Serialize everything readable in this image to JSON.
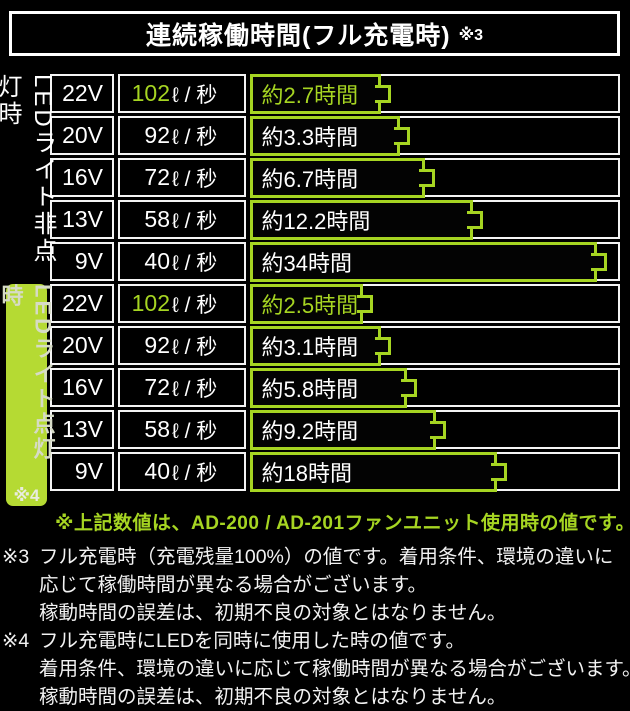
{
  "title": {
    "text": "連続稼働時間(フル充電時)",
    "note_ref": "※3"
  },
  "colors": {
    "accent_green": "#a6d522",
    "banner_green": "#b5da33",
    "banner_text": "#d6dbc6",
    "cell_border": "#f4f4f4",
    "bg": "#000000"
  },
  "chart_data": {
    "type": "bar",
    "title": "連続稼働時間(フル充電時) ※3",
    "orientation": "horizontal",
    "flow_unit": "ℓ / 秒",
    "time_unit": "時間",
    "sections": [
      {
        "label": "LEDライト非点灯時",
        "note_ref": "",
        "rows": [
          {
            "voltage": "22V",
            "flow": "102",
            "flow_lps": 102,
            "time": "約2.7時間",
            "hours": 2.7,
            "bar_frac": 0.36,
            "highlight": true
          },
          {
            "voltage": "20V",
            "flow": "92",
            "flow_lps": 92,
            "time": "約3.3時間",
            "hours": 3.3,
            "bar_frac": 0.41,
            "highlight": false
          },
          {
            "voltage": "16V",
            "flow": "72",
            "flow_lps": 72,
            "time": "約6.7時間",
            "hours": 6.7,
            "bar_frac": 0.48,
            "highlight": false
          },
          {
            "voltage": "13V",
            "flow": "58",
            "flow_lps": 58,
            "time": "約12.2時間",
            "hours": 12.2,
            "bar_frac": 0.61,
            "highlight": false
          },
          {
            "voltage": "9V",
            "flow": "40",
            "flow_lps": 40,
            "time": "約34時間",
            "hours": 34,
            "bar_frac": 0.95,
            "highlight": false
          }
        ]
      },
      {
        "label": "LEDライト点灯時",
        "note_ref": "※4",
        "rows": [
          {
            "voltage": "22V",
            "flow": "102",
            "flow_lps": 102,
            "time": "約2.5時間",
            "hours": 2.5,
            "bar_frac": 0.31,
            "highlight": true
          },
          {
            "voltage": "20V",
            "flow": "92",
            "flow_lps": 92,
            "time": "約3.1時間",
            "hours": 3.1,
            "bar_frac": 0.36,
            "highlight": false
          },
          {
            "voltage": "16V",
            "flow": "72",
            "flow_lps": 72,
            "time": "約5.8時間",
            "hours": 5.8,
            "bar_frac": 0.43,
            "highlight": false
          },
          {
            "voltage": "13V",
            "flow": "58",
            "flow_lps": 58,
            "time": "約9.2時間",
            "hours": 9.2,
            "bar_frac": 0.51,
            "highlight": false
          },
          {
            "voltage": "9V",
            "flow": "40",
            "flow_lps": 40,
            "time": "約18時間",
            "hours": 18,
            "bar_frac": 0.675,
            "highlight": false
          }
        ]
      }
    ]
  },
  "footnotes": {
    "general": "※上記数値は、AD-200 / AD-201ファンユニット使用時の値です。",
    "note3": {
      "marker": "※3",
      "lines": [
        "フル充電時（充電残量100%）の値です。着用条件、環境の違いに",
        "応じて稼働時間が異なる場合がございます。",
        "稼動時間の誤差は、初期不良の対象とはなりません。"
      ]
    },
    "note4": {
      "marker": "※4",
      "lines": [
        "フル充電時にLEDを同時に使用した時の値です。",
        "着用条件、環境の違いに応じて稼働時間が異なる場合がございます。",
        "稼動時間の誤差は、初期不良の対象とはなりません。"
      ]
    }
  }
}
